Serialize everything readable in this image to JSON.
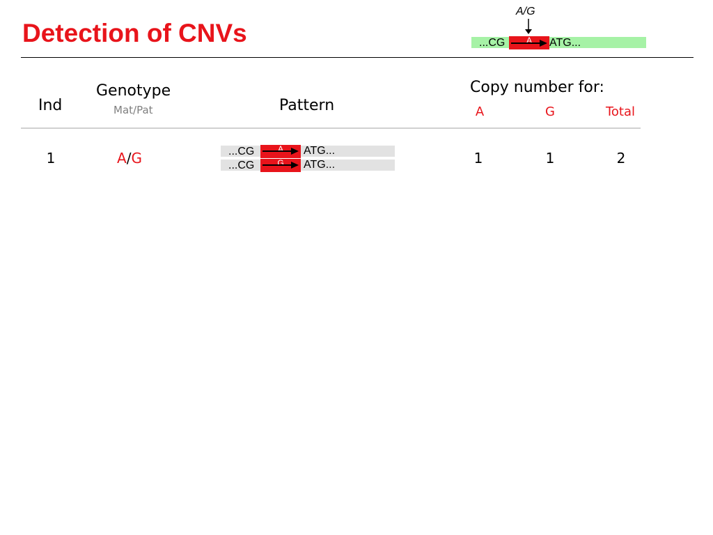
{
  "title": "Detection of CNVs",
  "reference": {
    "marker_label": "A/G",
    "left_seq": "...CG",
    "allele": "A",
    "right_seq": "ATG...",
    "strand_color": "#a6f2a6",
    "allele_color": "#e8141b"
  },
  "table": {
    "headers": {
      "ind": "Ind",
      "genotype": "Genotype",
      "genotype_sub": "Mat/Pat",
      "pattern": "Pattern",
      "copy_number": "Copy number for:",
      "cn_a": "A",
      "cn_g": "G",
      "cn_total": "Total"
    },
    "rows": [
      {
        "ind": "1",
        "geno_mat": "A",
        "geno_sep": "/",
        "geno_pat": "G",
        "pattern": [
          {
            "left_seq": "...CG",
            "allele": "A",
            "right_seq": "ATG..."
          },
          {
            "left_seq": "...CG",
            "allele": "G",
            "right_seq": "ATG..."
          }
        ],
        "cn_a": "1",
        "cn_g": "1",
        "cn_total": "2"
      }
    ]
  },
  "colors": {
    "accent": "#e8141b",
    "strand_gray": "#e2e2e2",
    "strand_green": "#a6f2a6",
    "subtle_text": "#7f7f7f"
  }
}
